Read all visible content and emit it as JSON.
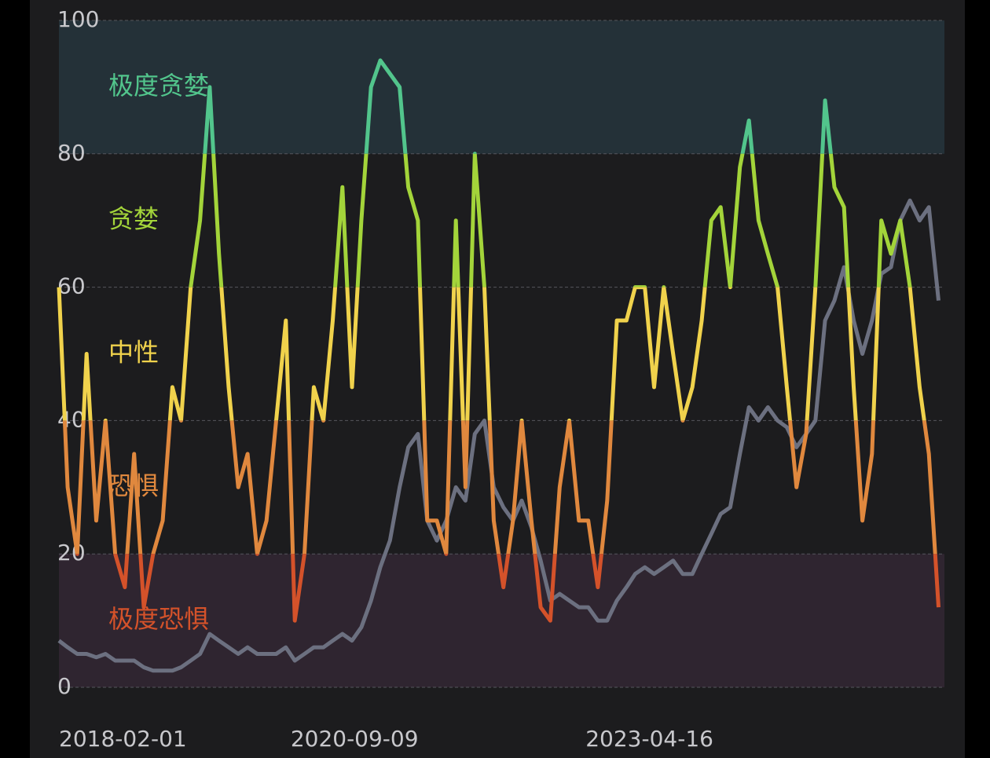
{
  "chart_data": {
    "type": "line",
    "bands": [
      {
        "from": 80,
        "to": 100,
        "label": "极度贪婪",
        "color": "#52c58c",
        "fill": "#243138"
      },
      {
        "from": 60,
        "to": 80,
        "label": "贪婪",
        "color": "#a3d43a"
      },
      {
        "from": 40,
        "to": 60,
        "label": "中性",
        "color": "#f0d24c"
      },
      {
        "from": 20,
        "to": 40,
        "label": "恐惧",
        "color": "#e0883e"
      },
      {
        "from": 0,
        "to": 20,
        "label": "极度恐惧",
        "color": "#d4522a",
        "fill": "#2f2530"
      }
    ],
    "x": [
      "2018-02-01",
      "2018-03-01",
      "2018-04-01",
      "2018-05-01",
      "2018-06-01",
      "2018-07-01",
      "2018-08-01",
      "2018-09-01",
      "2018-10-01",
      "2018-11-01",
      "2018-12-01",
      "2019-01-01",
      "2019-02-01",
      "2019-03-01",
      "2019-04-01",
      "2019-05-01",
      "2019-06-01",
      "2019-07-01",
      "2019-08-01",
      "2019-09-01",
      "2019-10-01",
      "2019-11-01",
      "2019-12-01",
      "2020-01-01",
      "2020-02-01",
      "2020-03-01",
      "2020-04-01",
      "2020-05-01",
      "2020-06-01",
      "2020-07-01",
      "2020-08-01",
      "2020-09-01",
      "2020-10-01",
      "2020-11-01",
      "2020-12-01",
      "2021-01-01",
      "2021-02-01",
      "2021-03-01",
      "2021-04-01",
      "2021-05-01",
      "2021-06-01",
      "2021-07-01",
      "2021-08-01",
      "2021-09-01",
      "2021-10-01",
      "2021-11-01",
      "2021-12-01",
      "2022-01-01",
      "2022-02-01",
      "2022-03-01",
      "2022-04-01",
      "2022-05-01",
      "2022-06-01",
      "2022-07-01",
      "2022-08-01",
      "2022-09-01",
      "2022-10-01",
      "2022-11-01",
      "2022-12-01",
      "2023-01-01",
      "2023-02-01",
      "2023-03-01",
      "2023-04-01",
      "2023-05-01",
      "2023-06-01",
      "2023-07-01",
      "2023-08-01",
      "2023-09-01",
      "2023-10-01",
      "2023-11-01",
      "2023-12-01",
      "2024-01-01",
      "2024-02-01",
      "2024-03-01",
      "2024-04-01",
      "2024-05-01",
      "2024-06-01",
      "2024-07-01",
      "2024-08-01",
      "2024-09-01",
      "2024-10-01",
      "2024-11-01",
      "2024-12-01",
      "2025-01-01",
      "2025-02-01",
      "2025-03-01",
      "2025-04-01",
      "2025-05-01",
      "2025-06-01",
      "2025-07-01",
      "2025-08-01",
      "2025-09-01",
      "2025-10-01",
      "2025-11-01"
    ],
    "series": [
      {
        "color": "#6c7080",
        "values": [
          7,
          6,
          5,
          5,
          4.5,
          5,
          4,
          4,
          4,
          3,
          2.5,
          2.5,
          2.5,
          3,
          4,
          5,
          8,
          7,
          6,
          5,
          6,
          5,
          5,
          5,
          6,
          4,
          5,
          6,
          6,
          7,
          8,
          7,
          9,
          13,
          18,
          22,
          30,
          36,
          38,
          25,
          22,
          25,
          30,
          28,
          38,
          40,
          30,
          27,
          25,
          28,
          24,
          19,
          13,
          14,
          13,
          12,
          12,
          10,
          10,
          13,
          15,
          17,
          18,
          17,
          18,
          19,
          17,
          17,
          20,
          23,
          26,
          27,
          35,
          42,
          40,
          42,
          40,
          39,
          36,
          38,
          40,
          55,
          58,
          63,
          55,
          50,
          55,
          62,
          63,
          70,
          73,
          70,
          72,
          58
        ]
      },
      {
        "banded": true,
        "values": [
          60,
          30,
          20,
          50,
          25,
          40,
          20,
          15,
          35,
          12,
          20,
          25,
          45,
          40,
          60,
          70,
          90,
          65,
          45,
          30,
          35,
          20,
          25,
          40,
          55,
          10,
          20,
          45,
          40,
          55,
          75,
          45,
          70,
          90,
          94,
          92,
          90,
          75,
          70,
          25,
          25,
          20,
          70,
          30,
          80,
          60,
          25,
          15,
          25,
          40,
          25,
          12,
          10,
          30,
          40,
          25,
          25,
          15,
          28,
          55,
          55,
          60,
          60,
          45,
          60,
          50,
          40,
          45,
          55,
          70,
          72,
          60,
          78,
          85,
          70,
          65,
          60,
          45,
          30,
          38,
          60,
          88,
          75,
          72,
          45,
          25,
          35,
          70,
          65,
          70,
          60,
          45,
          35,
          12
        ]
      }
    ],
    "xlim": [
      "2018-02-01",
      "2025-11-20"
    ],
    "xticks": [
      "2018-02-01",
      "2020-09-09",
      "2023-04-16"
    ],
    "ylim": [
      0,
      100
    ],
    "yticks": [
      0,
      20,
      40,
      60,
      80,
      100
    ],
    "grid": true
  }
}
